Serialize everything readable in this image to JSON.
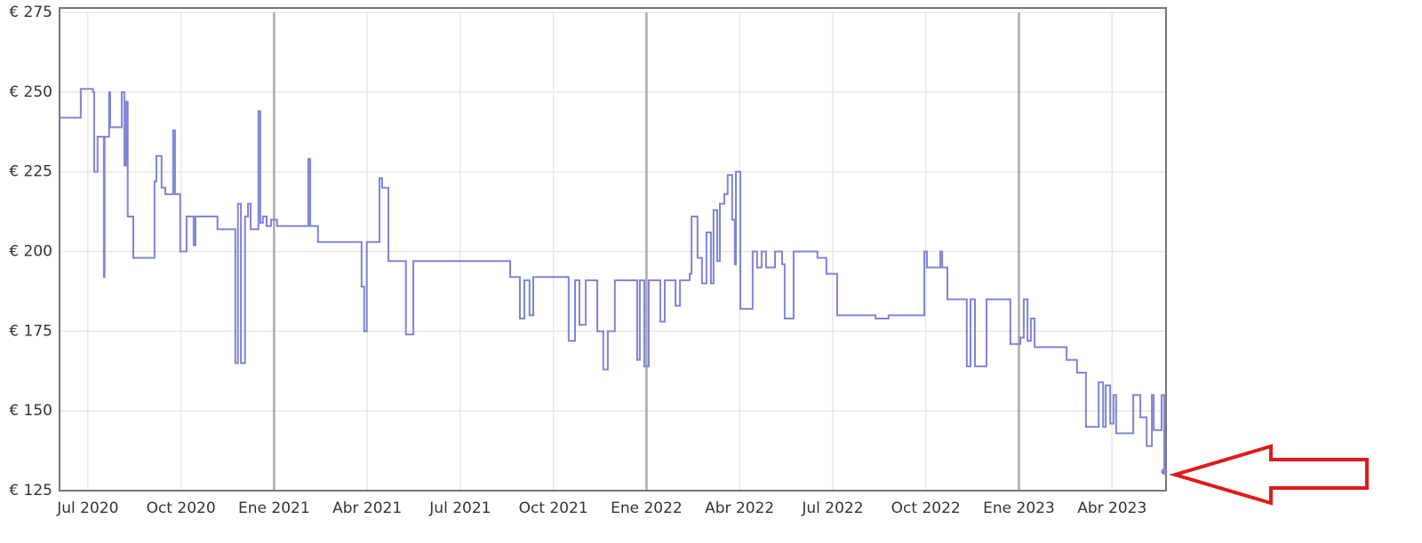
{
  "chart_data": {
    "type": "line",
    "step": "after",
    "x": [
      2020.424,
      2020.481,
      2020.514,
      2020.517,
      2020.526,
      2020.543,
      2020.545,
      2020.557,
      2020.56,
      2020.591,
      2020.598,
      2020.603,
      2020.607,
      2020.622,
      2020.679,
      2020.684,
      2020.698,
      2020.708,
      2020.729,
      2020.734,
      2020.748,
      2020.765,
      2020.784,
      2020.789,
      2020.848,
      2020.896,
      2020.903,
      2020.911,
      2020.922,
      2020.93,
      2020.937,
      2020.958,
      2020.963,
      2020.97,
      2020.98,
      2020.992,
      2021.008,
      2021.092,
      2021.097,
      2021.118,
      2021.235,
      2021.242,
      2021.249,
      2021.283,
      2021.29,
      2021.307,
      2021.354,
      2021.374,
      2021.634,
      2021.66,
      2021.672,
      2021.686,
      2021.696,
      2021.791,
      2021.808,
      2021.82,
      2021.837,
      2021.868,
      2021.884,
      2021.896,
      2021.915,
      2021.975,
      2021.982,
      2021.994,
      2022.006,
      2022.037,
      2022.049,
      2022.078,
      2022.09,
      2022.116,
      2022.121,
      2022.137,
      2022.149,
      2022.161,
      2022.173,
      2022.18,
      2022.19,
      2022.197,
      2022.209,
      2022.218,
      2022.23,
      2022.237,
      2022.24,
      2022.252,
      2022.285,
      2022.297,
      2022.309,
      2022.321,
      2022.345,
      2022.364,
      2022.371,
      2022.395,
      2022.459,
      2022.483,
      2022.512,
      2022.615,
      2022.65,
      2022.746,
      2022.753,
      2022.789,
      2022.794,
      2022.808,
      2022.86,
      2022.87,
      2022.882,
      2022.913,
      2022.977,
      2023.004,
      2023.013,
      2023.023,
      2023.032,
      2023.042,
      2023.128,
      2023.156,
      2023.18,
      2023.214,
      2023.226,
      2023.233,
      2023.245,
      2023.254,
      2023.261,
      2023.307,
      2023.326,
      2023.343,
      2023.357,
      2023.362,
      2023.383,
      2023.39
    ],
    "values": [
      242,
      251,
      250,
      225,
      236,
      192,
      236,
      250,
      239,
      250,
      227,
      247,
      211,
      198,
      222,
      230,
      220,
      218,
      238,
      218,
      200,
      211,
      202,
      211,
      207,
      165,
      215,
      165,
      211,
      215,
      207,
      244,
      209,
      211,
      208,
      210,
      208,
      229,
      208,
      203,
      189,
      175,
      203,
      223,
      220,
      197,
      174,
      197,
      192,
      179,
      191,
      180,
      192,
      172,
      191,
      177,
      191,
      175,
      163,
      175,
      191,
      166,
      191,
      164,
      191,
      178,
      191,
      183,
      191,
      193,
      211,
      198,
      190,
      206,
      190,
      213,
      197,
      215,
      218,
      224,
      210,
      196,
      225,
      182,
      200,
      195,
      200,
      195,
      200,
      196,
      179,
      200,
      198,
      193,
      180,
      179,
      180,
      200,
      195,
      200,
      195,
      185,
      164,
      185,
      164,
      185,
      171,
      173,
      185,
      172,
      179,
      170,
      166,
      162,
      145,
      159,
      145,
      158,
      146,
      155,
      143,
      155,
      148,
      139,
      155,
      144,
      155,
      131
    ],
    "color": "#8084d6",
    "xlim": [
      2020.424,
      2023.395
    ],
    "xticks": [
      {
        "value": 2020.5,
        "label": "Jul 2020"
      },
      {
        "value": 2020.75,
        "label": "Oct 2020"
      },
      {
        "value": 2021,
        "label": "Ene 2021"
      },
      {
        "value": 2021.25,
        "label": "Abr 2021"
      },
      {
        "value": 2021.5,
        "label": "Jul 2021"
      },
      {
        "value": 2021.75,
        "label": "Oct 2021"
      },
      {
        "value": 2022,
        "label": "Ene 2022"
      },
      {
        "value": 2022.25,
        "label": "Abr 2022"
      },
      {
        "value": 2022.5,
        "label": "Jul 2022"
      },
      {
        "value": 2022.75,
        "label": "Oct 2022"
      },
      {
        "value": 2023,
        "label": "Ene 2023"
      },
      {
        "value": 2023.25,
        "label": "Abr 2023"
      }
    ],
    "ylim": [
      125,
      275
    ],
    "yticks": [
      {
        "value": 125,
        "label": "€ 125"
      },
      {
        "value": 150,
        "label": "€ 150"
      },
      {
        "value": 175,
        "label": "€ 175"
      },
      {
        "value": 200,
        "label": "€ 200"
      },
      {
        "value": 225,
        "label": "€ 225"
      },
      {
        "value": 250,
        "label": "€ 250"
      },
      {
        "value": 275,
        "label": "€ 275"
      }
    ],
    "grid": true
  }
}
